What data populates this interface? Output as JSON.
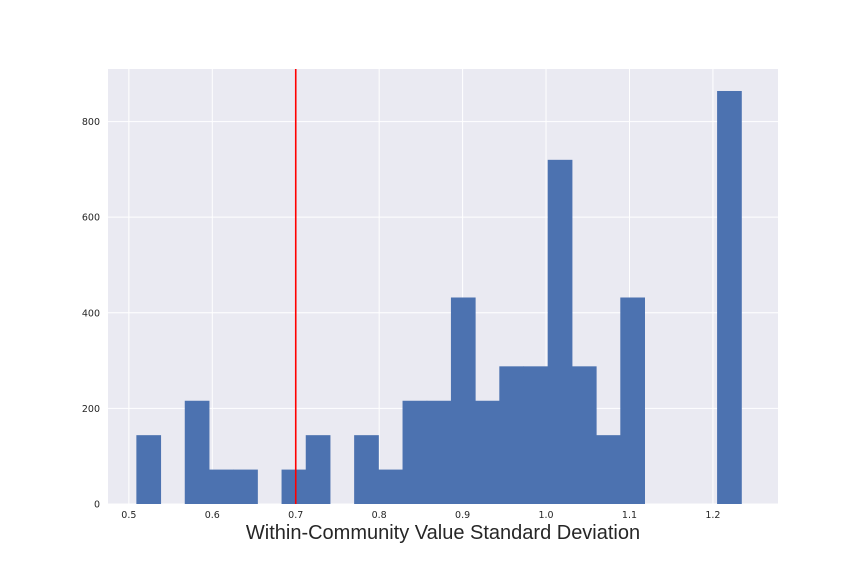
{
  "chart_data": {
    "type": "bar",
    "subtype": "histogram",
    "title": "",
    "xlabel": "Within-Community Value Standard Deviation",
    "ylabel": "",
    "xlim": [
      0.475,
      1.278
    ],
    "ylim": [
      0,
      910
    ],
    "xticks": [
      0.5,
      0.6,
      0.7,
      0.8,
      0.9,
      1.0,
      1.1,
      1.2
    ],
    "xtick_labels": [
      "0.5",
      "0.6",
      "0.7",
      "0.8",
      "0.9",
      "1.0",
      "1.1",
      "1.2"
    ],
    "yticks": [
      0,
      200,
      400,
      600,
      800
    ],
    "ytick_labels": [
      "0",
      "200",
      "400",
      "600",
      "800"
    ],
    "grid": true,
    "bins": [
      {
        "x0": 0.509,
        "x1": 0.538,
        "value": 144
      },
      {
        "x0": 0.538,
        "x1": 0.567,
        "value": 0
      },
      {
        "x0": 0.567,
        "x1": 0.596,
        "value": 216
      },
      {
        "x0": 0.596,
        "x1": 0.625,
        "value": 72
      },
      {
        "x0": 0.625,
        "x1": 0.654,
        "value": 72
      },
      {
        "x0": 0.654,
        "x1": 0.683,
        "value": 0
      },
      {
        "x0": 0.683,
        "x1": 0.712,
        "value": 72
      },
      {
        "x0": 0.712,
        "x1": 0.741,
        "value": 144
      },
      {
        "x0": 0.741,
        "x1": 0.77,
        "value": 0
      },
      {
        "x0": 0.77,
        "x1": 0.799,
        "value": 144
      },
      {
        "x0": 0.799,
        "x1": 0.828,
        "value": 72
      },
      {
        "x0": 0.828,
        "x1": 0.857,
        "value": 216
      },
      {
        "x0": 0.857,
        "x1": 0.886,
        "value": 216
      },
      {
        "x0": 0.886,
        "x1": 0.915,
        "value": 432
      },
      {
        "x0": 0.915,
        "x1": 0.944,
        "value": 216
      },
      {
        "x0": 0.944,
        "x1": 0.973,
        "value": 288
      },
      {
        "x0": 0.973,
        "x1": 1.002,
        "value": 288
      },
      {
        "x0": 1.002,
        "x1": 1.031,
        "value": 720
      },
      {
        "x0": 1.031,
        "x1": 1.06,
        "value": 288
      },
      {
        "x0": 1.06,
        "x1": 1.089,
        "value": 144
      },
      {
        "x0": 1.089,
        "x1": 1.118,
        "value": 432
      },
      {
        "x0": 1.118,
        "x1": 1.147,
        "value": 0
      },
      {
        "x0": 1.147,
        "x1": 1.176,
        "value": 0
      },
      {
        "x0": 1.176,
        "x1": 1.205,
        "value": 0
      },
      {
        "x0": 1.205,
        "x1": 1.234,
        "value": 864
      }
    ],
    "vline": {
      "x": 0.7
    },
    "colors": {
      "bar": "#4c72b0",
      "vline": "#ff0000",
      "plot_background": "#eaeaf2",
      "grid": "#ffffff"
    }
  }
}
